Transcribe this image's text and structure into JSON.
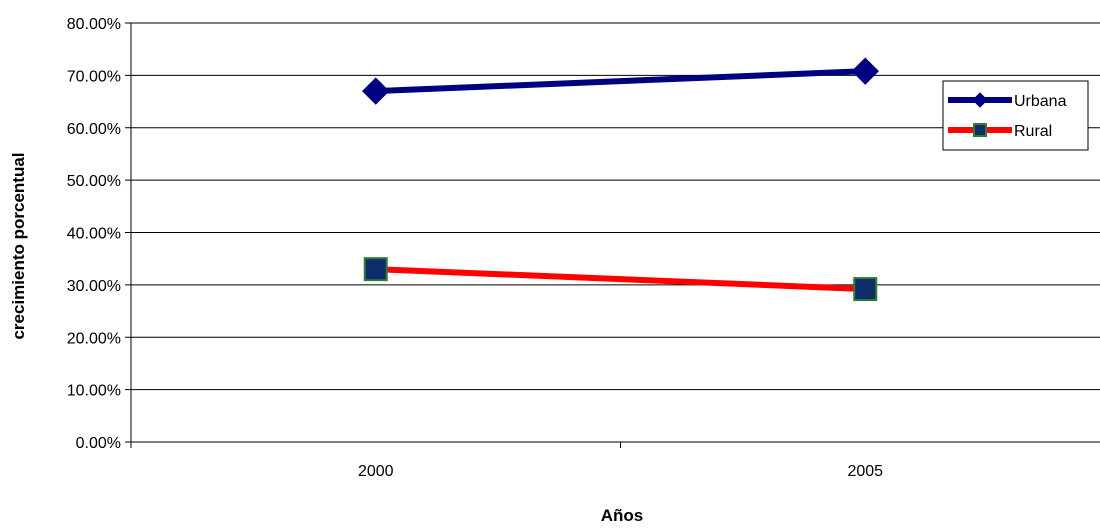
{
  "chart_data": {
    "type": "line",
    "categories": [
      "2000",
      "2005"
    ],
    "series": [
      {
        "name": "Urbana",
        "values": [
          67.0,
          70.8
        ],
        "color": "#000080",
        "marker": "diamond"
      },
      {
        "name": "Rural",
        "values": [
          33.0,
          29.2
        ],
        "color": "#FF0000",
        "marker": "square",
        "marker_fill": "#0F2D6B",
        "marker_edge": "#2E7D32"
      }
    ],
    "xlabel": "Años",
    "ylabel": "crecimiento porcentual",
    "ylim": [
      0,
      80
    ],
    "yticks": [
      "0.00%",
      "10.00%",
      "20.00%",
      "30.00%",
      "40.00%",
      "50.00%",
      "60.00%",
      "70.00%",
      "80.00%"
    ],
    "grid": true,
    "legend_position": "right"
  }
}
